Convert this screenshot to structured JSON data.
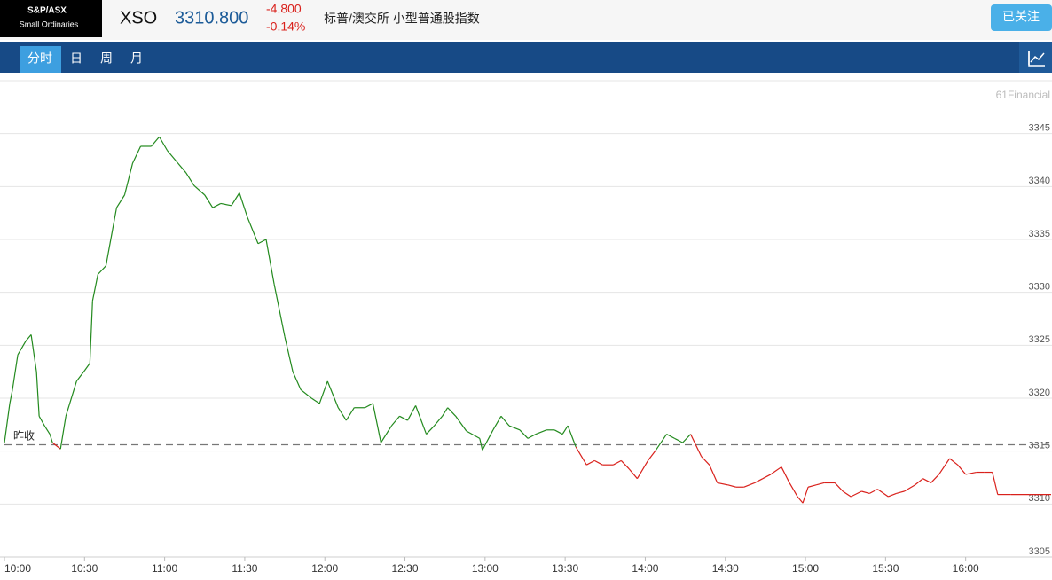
{
  "header": {
    "logo_line1": "S&P/ASX",
    "logo_line2": "Small Ordinaries",
    "symbol": "XSO",
    "price": "3310.800",
    "change": "-4.800",
    "change_pct": "-0.14%",
    "name": "标普/澳交所 小型普通股指数",
    "follow_button": "已关注"
  },
  "tabs": [
    "分时",
    "日",
    "周",
    "月"
  ],
  "chart_data": {
    "type": "line",
    "watermark": "61Financial",
    "prev_close_label": "昨收",
    "prev_close": 3315.6,
    "prev_close_color": "#777777",
    "x": [
      0,
      2,
      3,
      5,
      8,
      10,
      12,
      13,
      15,
      17,
      18,
      21,
      23,
      27,
      30,
      32,
      33,
      35,
      38,
      42,
      45,
      48,
      51,
      55,
      58,
      61,
      65,
      68,
      71,
      75,
      78,
      81,
      85,
      88,
      91,
      95,
      98,
      101,
      105,
      108,
      111,
      115,
      118,
      121,
      125,
      128,
      131,
      135,
      138,
      141,
      145,
      148,
      151,
      154,
      158,
      161,
      164,
      166,
      169,
      173,
      178,
      179,
      183,
      186,
      189,
      193,
      196,
      199,
      203,
      206,
      209,
      211,
      214,
      218,
      221,
      224,
      228,
      231,
      234,
      237,
      241,
      244,
      248,
      251,
      254,
      257,
      261,
      264,
      267,
      271,
      274,
      277,
      281,
      284,
      287,
      291,
      294,
      297,
      299,
      301,
      304,
      307,
      311,
      314,
      317,
      321,
      324,
      327,
      331,
      334,
      337,
      341,
      344,
      347,
      350,
      354,
      357,
      360,
      364,
      367,
      370,
      372,
      377,
      384,
      392
    ],
    "series": [
      {
        "up_color": "#238a1e",
        "down_color": "#d9211c",
        "values": [
          3315.8,
          3319.5,
          3320.8,
          3324.1,
          3325.4,
          3326.0,
          3322.5,
          3318.3,
          3317.4,
          3316.6,
          3315.8,
          3315.2,
          3318.3,
          3321.6,
          3322.6,
          3323.3,
          3329.2,
          3331.7,
          3332.5,
          3338.0,
          3339.2,
          3342.2,
          3343.8,
          3343.8,
          3344.7,
          3343.4,
          3342.2,
          3341.3,
          3340.1,
          3339.2,
          3338.0,
          3338.4,
          3338.2,
          3339.4,
          3337.1,
          3334.6,
          3335.0,
          3330.8,
          3325.8,
          3322.5,
          3320.8,
          3320.0,
          3319.5,
          3321.6,
          3319.1,
          3317.9,
          3319.1,
          3319.1,
          3319.5,
          3315.8,
          3317.4,
          3318.3,
          3317.9,
          3319.3,
          3316.6,
          3317.4,
          3318.3,
          3319.1,
          3318.3,
          3316.9,
          3316.2,
          3315.1,
          3317.0,
          3318.3,
          3317.4,
          3317.0,
          3316.2,
          3316.6,
          3317.0,
          3317.0,
          3316.6,
          3317.4,
          3315.4,
          3313.7,
          3314.1,
          3313.7,
          3313.7,
          3314.1,
          3313.3,
          3312.4,
          3314.1,
          3315.1,
          3316.6,
          3316.2,
          3315.8,
          3316.6,
          3314.5,
          3313.7,
          3312.0,
          3311.8,
          3311.6,
          3311.6,
          3312.0,
          3312.4,
          3312.8,
          3313.5,
          3312.0,
          3310.7,
          3310.1,
          3311.6,
          3311.8,
          3312.0,
          3312.0,
          3311.2,
          3310.7,
          3311.2,
          3311.0,
          3311.4,
          3310.7,
          3311.0,
          3311.2,
          3311.8,
          3312.4,
          3312.0,
          3312.8,
          3314.3,
          3313.7,
          3312.8,
          3313.0,
          3313.0,
          3313.0,
          3310.9,
          3310.9,
          3310.9,
          3310.9
        ]
      }
    ],
    "xlim": [
      0,
      392
    ],
    "xticks": [
      {
        "value": 0,
        "label": "10:00"
      },
      {
        "value": 30,
        "label": "10:30"
      },
      {
        "value": 60,
        "label": "11:00"
      },
      {
        "value": 90,
        "label": "11:30"
      },
      {
        "value": 120,
        "label": "12:00"
      },
      {
        "value": 150,
        "label": "12:30"
      },
      {
        "value": 180,
        "label": "13:00"
      },
      {
        "value": 210,
        "label": "13:30"
      },
      {
        "value": 240,
        "label": "14:00"
      },
      {
        "value": 270,
        "label": "14:30"
      },
      {
        "value": 300,
        "label": "15:00"
      },
      {
        "value": 330,
        "label": "15:30"
      },
      {
        "value": 360,
        "label": "16:00"
      }
    ],
    "ylim": [
      3305,
      3350
    ],
    "yticks": [
      3305,
      3310,
      3315,
      3320,
      3325,
      3330,
      3335,
      3340,
      3345
    ],
    "grid": true
  }
}
